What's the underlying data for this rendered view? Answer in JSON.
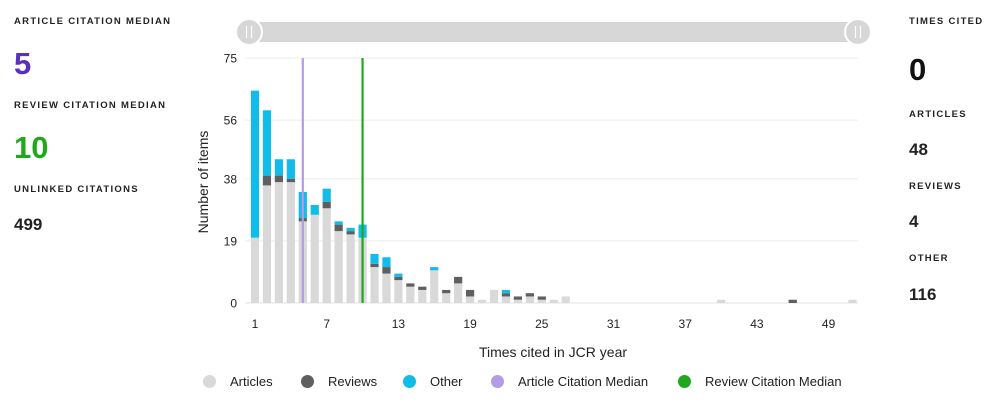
{
  "left_stats": {
    "article_median_label": "ARTICLE CITATION MEDIAN",
    "article_median_value": "5",
    "review_median_label": "REVIEW CITATION MEDIAN",
    "review_median_value": "10",
    "unlinked_label": "UNLINKED CITATIONS",
    "unlinked_value": "499"
  },
  "right_stats": {
    "times_cited_label": "TIMES CITED",
    "times_cited_value": "0",
    "articles_label": "ARTICLES",
    "articles_value": "48",
    "reviews_label": "REVIEWS",
    "reviews_value": "4",
    "other_label": "OTHER",
    "other_value": "116"
  },
  "colors": {
    "articles": "#d9d9d9",
    "reviews": "#5f5f5f",
    "other": "#11bde8",
    "article_median": "#b39ce3",
    "review_median": "#1fa81c",
    "article_median_text": "#5b2fbf",
    "review_median_text": "#1fa81c"
  },
  "slider": {
    "left_handle": "left-handle",
    "right_handle": "right-handle"
  },
  "legend": [
    {
      "label": "Articles",
      "color": "#d9d9d9"
    },
    {
      "label": "Reviews",
      "color": "#5f5f5f"
    },
    {
      "label": "Other",
      "color": "#11bde8"
    },
    {
      "label": "Article Citation Median",
      "color": "#b39ce3"
    },
    {
      "label": "Review Citation Median",
      "color": "#1fa81c"
    }
  ],
  "chart_data": {
    "type": "bar",
    "stacked": true,
    "xlabel": "Times cited in JCR year",
    "ylabel": "Number of items",
    "ylim": [
      0,
      75
    ],
    "yticks": [
      "0",
      "19",
      "38",
      "56",
      "75"
    ],
    "xticks": [
      "1",
      "7",
      "13",
      "19",
      "25",
      "31",
      "37",
      "43",
      "49"
    ],
    "x": [
      1,
      2,
      3,
      4,
      5,
      6,
      7,
      8,
      9,
      10,
      11,
      12,
      13,
      14,
      15,
      16,
      17,
      18,
      19,
      20,
      21,
      22,
      23,
      24,
      25,
      26,
      27,
      28,
      29,
      30,
      31,
      32,
      33,
      34,
      35,
      36,
      37,
      38,
      39,
      40,
      41,
      42,
      43,
      44,
      45,
      46,
      47,
      48,
      49,
      50,
      51
    ],
    "series": [
      {
        "name": "Articles",
        "values": [
          20,
          36,
          37,
          37,
          25,
          27,
          29,
          22,
          21,
          20,
          11,
          9,
          7,
          5,
          4,
          10,
          3,
          6,
          2,
          1,
          4,
          2,
          1,
          2,
          1,
          1,
          2,
          0,
          0,
          0,
          0,
          0,
          0,
          0,
          0,
          0,
          0,
          0,
          0,
          1,
          0,
          0,
          0,
          0,
          0,
          0,
          0,
          0,
          0,
          0,
          1
        ]
      },
      {
        "name": "Reviews",
        "values": [
          0,
          3,
          2,
          1,
          1,
          0,
          2,
          2,
          1,
          0,
          1,
          2,
          1,
          1,
          1,
          0,
          1,
          2,
          2,
          0,
          0,
          1,
          1,
          1,
          1,
          0,
          0,
          0,
          0,
          0,
          0,
          0,
          0,
          0,
          0,
          0,
          0,
          0,
          0,
          0,
          0,
          0,
          0,
          0,
          0,
          1,
          0,
          0,
          0,
          0,
          0
        ]
      },
      {
        "name": "Other",
        "values": [
          45,
          20,
          5,
          6,
          8,
          3,
          4,
          1,
          1,
          4,
          3,
          3,
          1,
          0,
          0,
          1,
          0,
          0,
          0,
          0,
          0,
          1,
          0,
          0,
          0,
          0,
          0,
          0,
          0,
          0,
          0,
          0,
          0,
          0,
          0,
          0,
          0,
          0,
          0,
          0,
          0,
          0,
          0,
          0,
          0,
          0,
          0,
          0,
          0,
          0,
          0
        ]
      }
    ],
    "medians": [
      {
        "name": "Article Citation Median",
        "value": 5
      },
      {
        "name": "Review Citation Median",
        "value": 10
      }
    ],
    "grid": true,
    "legend_position": "bottom"
  }
}
